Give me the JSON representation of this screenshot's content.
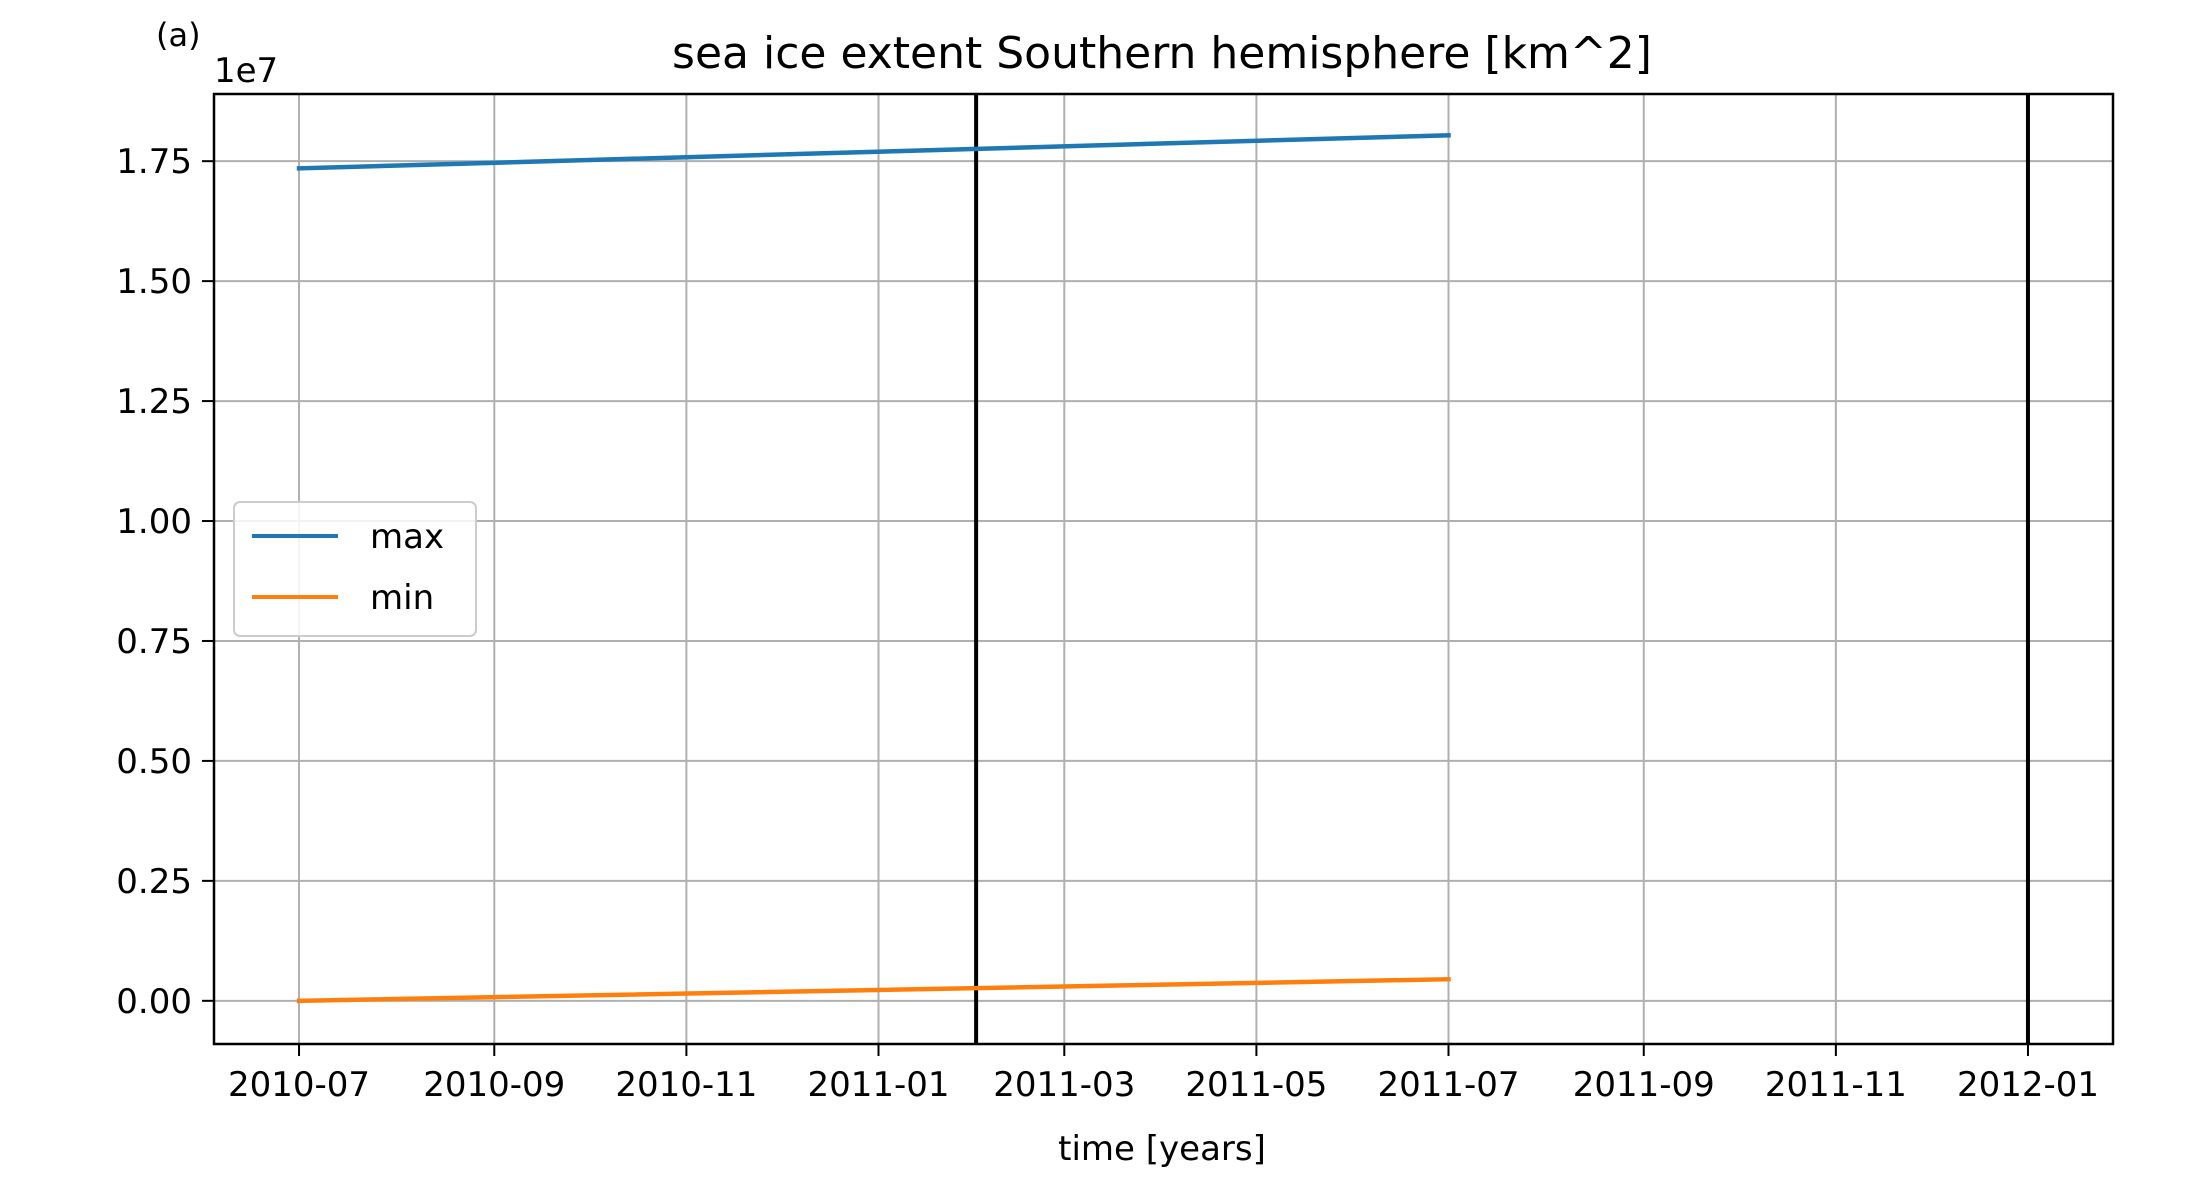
{
  "panel_label": "(a)",
  "colors": {
    "max": "#1f77b4",
    "min": "#ff7f0e",
    "grid": "#b0b0b0",
    "vline": "#000000"
  },
  "chart_data": {
    "type": "line",
    "title": "sea ice extent Southern hemisphere [km^2]",
    "xlabel": "time [years]",
    "ylabel": "",
    "y_offset_label": "1e7",
    "xlim": [
      "2010-06-04",
      "2012-01-28"
    ],
    "ylim": [
      -0.09,
      1.89
    ],
    "y_scale_factor": 10000000,
    "grid": true,
    "legend_position": "center-left",
    "x_ticks": [
      {
        "date": "2010-07-01",
        "label": "2010-07"
      },
      {
        "date": "2010-09-01",
        "label": "2010-09"
      },
      {
        "date": "2010-11-01",
        "label": "2010-11"
      },
      {
        "date": "2011-01-01",
        "label": "2011-01"
      },
      {
        "date": "2011-03-01",
        "label": "2011-03"
      },
      {
        "date": "2011-05-01",
        "label": "2011-05"
      },
      {
        "date": "2011-07-01",
        "label": "2011-07"
      },
      {
        "date": "2011-09-01",
        "label": "2011-09"
      },
      {
        "date": "2011-11-01",
        "label": "2011-11"
      },
      {
        "date": "2012-01-01",
        "label": "2012-01"
      }
    ],
    "y_ticks": [
      {
        "value": 0.0,
        "label": "0.00"
      },
      {
        "value": 0.25,
        "label": "0.25"
      },
      {
        "value": 0.5,
        "label": "0.50"
      },
      {
        "value": 0.75,
        "label": "0.75"
      },
      {
        "value": 1.0,
        "label": "1.00"
      },
      {
        "value": 1.25,
        "label": "1.25"
      },
      {
        "value": 1.5,
        "label": "1.50"
      },
      {
        "value": 1.75,
        "label": "1.75"
      }
    ],
    "vertical_lines": [
      "2011-02-01",
      "2012-01-01"
    ],
    "series": [
      {
        "name": "max",
        "color": "#1f77b4",
        "x": [
          "2010-07-01",
          "2011-07-01"
        ],
        "y": [
          1.735,
          1.804
        ]
      },
      {
        "name": "min",
        "color": "#ff7f0e",
        "x": [
          "2010-07-01",
          "2011-07-01"
        ],
        "y": [
          0.0,
          0.045
        ]
      }
    ]
  }
}
